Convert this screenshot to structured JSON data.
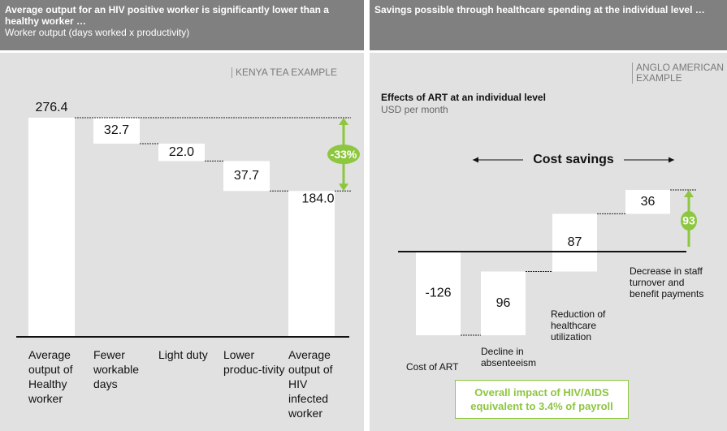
{
  "chart_data": [
    {
      "type": "waterfall",
      "title": "Average output for an HIV positive worker is significantly lower than a healthy worker …",
      "subtitle": "Worker output (days worked x productivity)",
      "tag": "KENYA TEA EXAMPLE",
      "categories": [
        "Average output of Healthy worker",
        "Fewer workable days",
        "Light duty",
        "Lower produc-tivity",
        "Average output of HIV infected worker"
      ],
      "measure": [
        "absolute",
        "relative",
        "relative",
        "relative",
        "total"
      ],
      "values": [
        276.4,
        -32.7,
        -22.0,
        -37.7,
        184.0
      ],
      "value_labels": [
        "276.4",
        "32.7",
        "22.0",
        "37.7",
        "184.0"
      ],
      "change": {
        "value": -33,
        "label": "-33%"
      },
      "color": "#ffffff",
      "accent": "#8dc63f"
    },
    {
      "type": "waterfall",
      "title": "Savings possible through healthcare spending at the individual level …",
      "chart_title": "Effects of ART at an individual level",
      "subtitle": "USD per month",
      "tag": "ANGLO AMERICAN EXAMPLE",
      "bracket_label": "Cost savings",
      "categories": [
        "Cost of ART",
        "Decline in absenteeism",
        "Reduction of healthcare utilization",
        "Decrease in staff turnover and benefit payments"
      ],
      "measure": [
        "relative",
        "relative",
        "relative",
        "relative"
      ],
      "values": [
        -126,
        96,
        87,
        36
      ],
      "net": 93,
      "callout": "Overall impact of HIV/AIDS equivalent to 3.4% of payroll",
      "color": "#ffffff",
      "accent": "#8dc63f"
    }
  ]
}
